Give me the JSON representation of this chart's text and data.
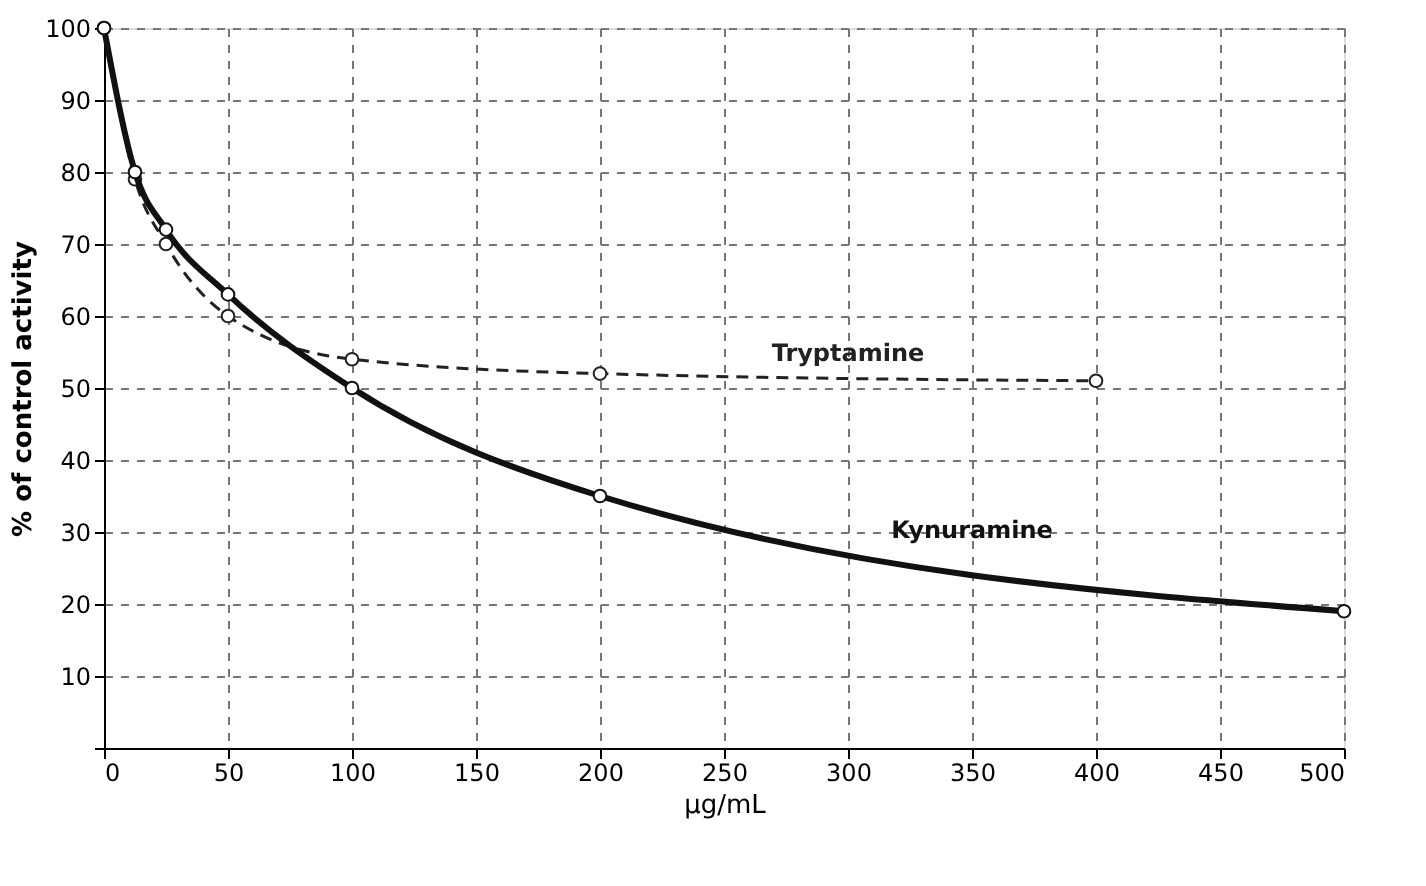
{
  "chart_data": {
    "type": "line",
    "xlabel": "µg/mL",
    "ylabel": "% of control activity",
    "xlim": [
      0,
      500
    ],
    "ylim": [
      0,
      100
    ],
    "xticks": [
      0,
      50,
      100,
      150,
      200,
      250,
      300,
      350,
      400,
      450,
      500
    ],
    "yticks": [
      {
        "value": 0,
        "label": null
      },
      10,
      20,
      30,
      40,
      50,
      60,
      70,
      80,
      90,
      100
    ],
    "grid": true,
    "marker": "circle",
    "series": [
      {
        "name": "Tryptamine",
        "color": "#222222",
        "line_style": "dashed",
        "x": [
          0,
          12.5,
          25,
          50,
          100,
          200,
          400
        ],
        "values": [
          100,
          79,
          70,
          60,
          54,
          52,
          51
        ]
      },
      {
        "name": "Kynuramine",
        "color": "#111111",
        "line_style": "solid",
        "x": [
          0,
          12.5,
          25,
          50,
          100,
          200,
          500
        ],
        "values": [
          100,
          80,
          72,
          63,
          50,
          35,
          19
        ]
      }
    ]
  }
}
